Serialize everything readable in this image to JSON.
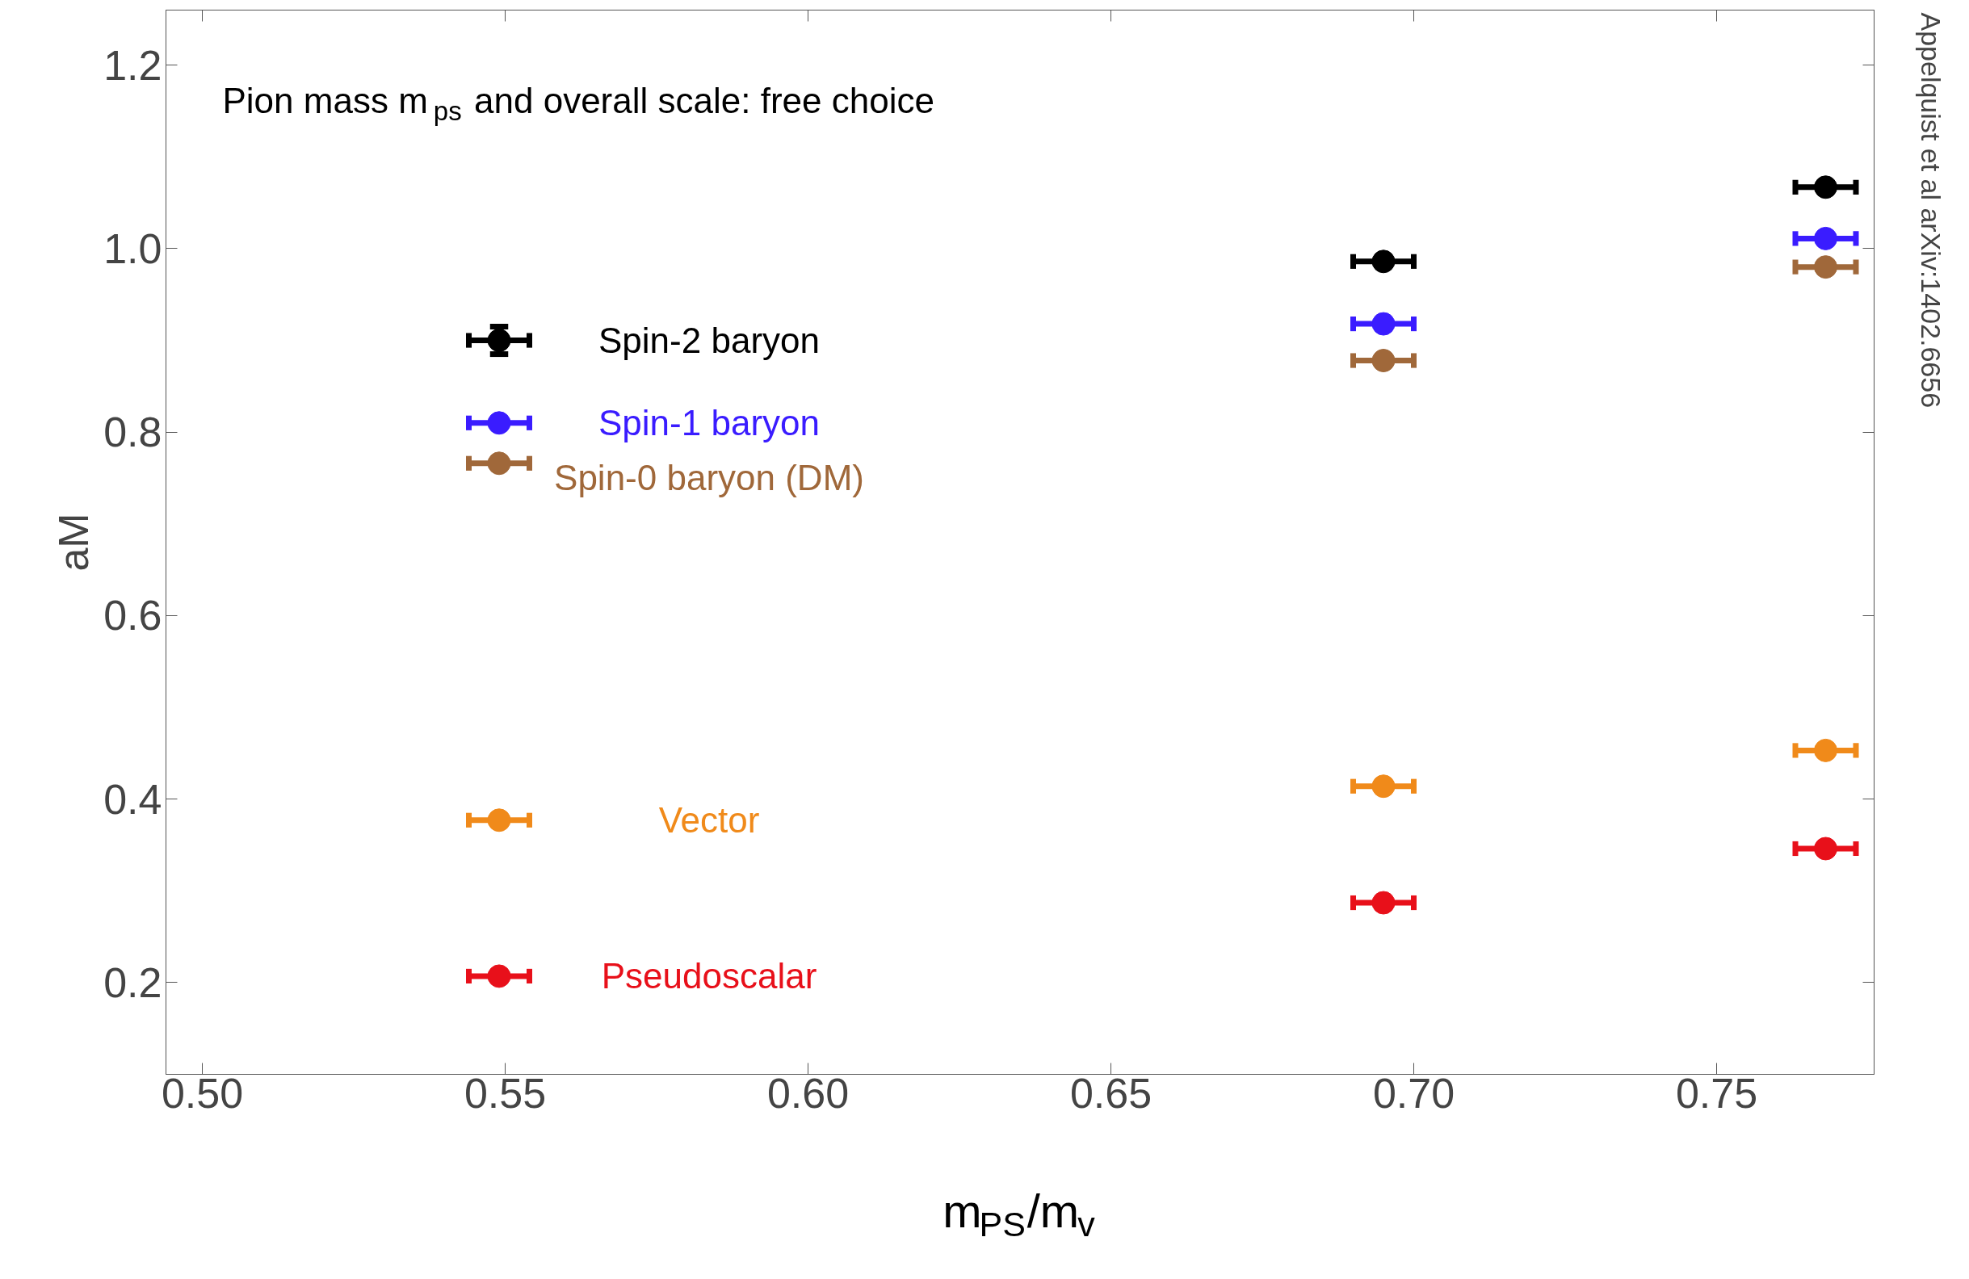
{
  "chart_data": {
    "type": "scatter",
    "xlabel": "m$_{PS}$/m$_{v}$",
    "ylabel": "aM",
    "annotations": [
      "Pion mass m$_{ps}$ and overall scale: free choice",
      "Appelquist et al arXiv:1402.6656"
    ],
    "x": [
      0.549,
      0.695,
      0.768
    ],
    "series": [
      {
        "name": "Spin-2 baryon",
        "color": "#000000",
        "values": [
          0.9,
          0.986,
          1.067
        ],
        "errors": [
          0.015,
          null,
          null
        ],
        "xerrors": [
          0.005,
          0.005,
          0.005
        ]
      },
      {
        "name": "Spin-1 baryon",
        "color": "#3a1cff",
        "values": [
          0.81,
          0.918,
          1.011
        ],
        "xerrors": [
          0.005,
          0.005,
          0.005
        ]
      },
      {
        "name": "Spin-0 baryon (DM)",
        "color": "#a0683a",
        "values": [
          0.766,
          0.878,
          0.98
        ],
        "xerrors": [
          0.005,
          0.005,
          0.005
        ]
      },
      {
        "name": "Vector",
        "color": "#f08a1a",
        "values": [
          0.377,
          0.414,
          0.453
        ],
        "xerrors": [
          0.005,
          0.005,
          0.005
        ]
      },
      {
        "name": "Pseudoscalar",
        "color": "#e8101a",
        "values": [
          0.207,
          0.287,
          0.346
        ],
        "xerrors": [
          0.005,
          0.005,
          0.005
        ]
      }
    ],
    "xlim": [
      0.494,
      0.776
    ],
    "ylim": [
      0.1,
      1.26
    ],
    "xticks": [
      {
        "value": 0.5,
        "label": "0.50"
      },
      0.55,
      {
        "value": 0.6,
        "label": "0.60"
      },
      0.65,
      {
        "value": 0.7,
        "label": "0.70"
      },
      0.75
    ],
    "yticks": [
      0.2,
      0.4,
      0.6,
      0.8,
      {
        "value": 1.0,
        "label": "1.0"
      },
      1.2
    ],
    "grid": false,
    "legend": false,
    "marker": "circle"
  }
}
